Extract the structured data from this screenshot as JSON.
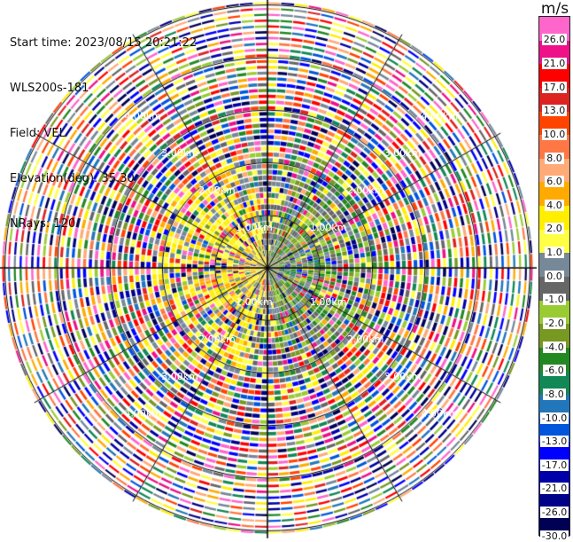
{
  "info": {
    "start_time": "Start time: 2023/08/15 20:21:22",
    "instrument": "WLS200s-181",
    "field": "Field: VEL",
    "elevation": "Elevation(deg): 35.30",
    "nrays": "NRays: 120"
  },
  "colorbar": {
    "unit": "m/s",
    "ticks": [
      "26.0",
      "21.0",
      "17.0",
      "13.0",
      "10.0",
      "8.0",
      "6.0",
      "4.0",
      "2.0",
      "1.0",
      "0.0",
      "-1.0",
      "-2.0",
      "-4.0",
      "-6.0",
      "-8.0",
      "-10.0",
      "-13.0",
      "-17.0",
      "-21.0",
      "-26.0",
      "-30.0"
    ],
    "colors": [
      "#ff66cc",
      "#ee1188",
      "#ff0000",
      "#dd2222",
      "#ff4400",
      "#ff7744",
      "#ffaa77",
      "#ffaa00",
      "#ffee00",
      "#ffff44",
      "#778899",
      "#666666",
      "#99cc33",
      "#779922",
      "#228822",
      "#118855",
      "#2277bb",
      "#0055dd",
      "#0000ff",
      "#0000aa",
      "#000088",
      "#000055"
    ]
  },
  "chart_data": {
    "type": "ppi",
    "field": "VEL",
    "nrays": 120,
    "elevation_deg": 35.3,
    "range_ring_labels": [
      "1.00km",
      "2.00km",
      "3.00km",
      "4.00km"
    ],
    "colorbar_unit": "m/s",
    "value_range": [
      -30,
      30
    ]
  }
}
